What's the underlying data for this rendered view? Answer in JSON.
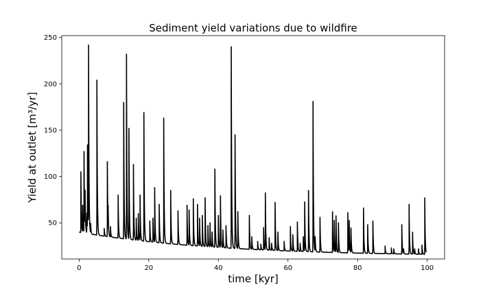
{
  "chart_data": {
    "type": "line",
    "title": "Sediment yield variations due to wildfire",
    "xlabel": "time [kyr]",
    "ylabel": "Yield at outlet [m³/yr]",
    "xlim": [
      -5,
      105
    ],
    "ylim": [
      11,
      252
    ],
    "xticks": [
      0,
      20,
      40,
      60,
      80,
      100
    ],
    "yticks": [
      50,
      100,
      150,
      200,
      250
    ],
    "grid": false,
    "series": [
      {
        "color": "#000000",
        "baseline": {
          "start_x": 0.0,
          "start_y": 40,
          "end_x": 99.7,
          "end_y": 16,
          "slow_decay_kyr": 40
        },
        "peaks": [
          [
            0.5,
            105
          ],
          [
            1.0,
            68
          ],
          [
            1.4,
            126
          ],
          [
            1.7,
            78
          ],
          [
            2.2,
            60
          ],
          [
            2.4,
            130
          ],
          [
            2.7,
            234
          ],
          [
            3.3,
            48
          ],
          [
            5.1,
            204
          ],
          [
            7.2,
            44
          ],
          [
            8.1,
            116
          ],
          [
            8.3,
            60
          ],
          [
            9.0,
            46
          ],
          [
            11.2,
            80
          ],
          [
            12.8,
            180
          ],
          [
            13.6,
            232
          ],
          [
            14.3,
            152
          ],
          [
            15.6,
            113
          ],
          [
            16.4,
            55
          ],
          [
            17.0,
            60
          ],
          [
            17.5,
            80
          ],
          [
            18.6,
            169
          ],
          [
            20.3,
            52
          ],
          [
            21.2,
            55
          ],
          [
            21.7,
            88
          ],
          [
            23.0,
            70
          ],
          [
            24.3,
            163
          ],
          [
            26.3,
            85
          ],
          [
            28.4,
            63
          ],
          [
            31.0,
            69
          ],
          [
            31.6,
            64
          ],
          [
            32.8,
            76
          ],
          [
            34.0,
            70
          ],
          [
            34.6,
            55
          ],
          [
            35.4,
            58
          ],
          [
            36.2,
            77
          ],
          [
            37.0,
            47
          ],
          [
            37.6,
            50
          ],
          [
            38.2,
            40
          ],
          [
            39.0,
            108
          ],
          [
            40.0,
            58
          ],
          [
            40.6,
            79
          ],
          [
            41.3,
            42
          ],
          [
            42.2,
            47
          ],
          [
            43.7,
            240
          ],
          [
            44.8,
            145
          ],
          [
            45.6,
            62
          ],
          [
            48.9,
            58
          ],
          [
            49.6,
            35
          ],
          [
            51.3,
            30
          ],
          [
            52.2,
            27
          ],
          [
            53.0,
            45
          ],
          [
            53.5,
            82
          ],
          [
            54.6,
            34
          ],
          [
            55.3,
            28
          ],
          [
            56.3,
            72
          ],
          [
            57.1,
            40
          ],
          [
            58.9,
            30
          ],
          [
            60.7,
            46
          ],
          [
            61.4,
            37
          ],
          [
            62.7,
            51
          ],
          [
            63.5,
            28
          ],
          [
            64.4,
            35
          ],
          [
            64.8,
            72
          ],
          [
            65.9,
            85
          ],
          [
            67.2,
            181
          ],
          [
            67.8,
            34
          ],
          [
            69.2,
            56
          ],
          [
            72.8,
            62
          ],
          [
            73.3,
            52
          ],
          [
            73.8,
            57
          ],
          [
            74.5,
            50
          ],
          [
            77.2,
            61
          ],
          [
            77.6,
            51
          ],
          [
            78.1,
            44
          ],
          [
            81.7,
            66
          ],
          [
            82.9,
            48
          ],
          [
            84.4,
            52
          ],
          [
            87.9,
            25
          ],
          [
            89.7,
            23
          ],
          [
            90.4,
            22
          ],
          [
            92.7,
            48
          ],
          [
            93.2,
            22
          ],
          [
            94.8,
            70
          ],
          [
            95.8,
            40
          ],
          [
            96.4,
            22
          ],
          [
            97.5,
            22
          ],
          [
            98.5,
            26
          ],
          [
            99.3,
            77
          ]
        ]
      }
    ]
  }
}
